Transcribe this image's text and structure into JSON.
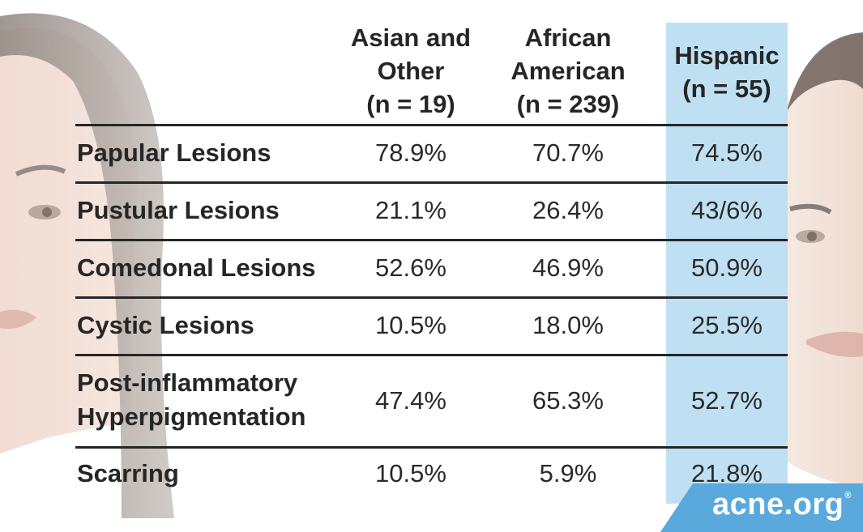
{
  "chart_data": {
    "type": "table",
    "columns": [
      {
        "name_lines": [
          "Asian and",
          "Other",
          "(n = 19)"
        ]
      },
      {
        "name_lines": [
          "African",
          "American",
          "(n = 239)"
        ]
      },
      {
        "name_lines": [
          "Hispanic",
          "(n = 55)"
        ]
      }
    ],
    "rows": [
      {
        "label_lines": [
          "Papular Lesions"
        ],
        "values": [
          "78.9%",
          "70.7%",
          "74.5%"
        ]
      },
      {
        "label_lines": [
          "Pustular Lesions"
        ],
        "values": [
          "21.1%",
          "26.4%",
          "43/6%"
        ]
      },
      {
        "label_lines": [
          "Comedonal Lesions"
        ],
        "values": [
          "52.6%",
          "46.9%",
          "50.9%"
        ]
      },
      {
        "label_lines": [
          "Cystic Lesions"
        ],
        "values": [
          "10.5%",
          "18.0%",
          "25.5%"
        ]
      },
      {
        "label_lines": [
          "Post-inflammatory",
          "Hyperpigmentation"
        ],
        "values": [
          "47.4%",
          "65.3%",
          "52.7%"
        ]
      },
      {
        "label_lines": [
          "Scarring"
        ],
        "values": [
          "10.5%",
          "5.9%",
          "21.8%"
        ]
      }
    ],
    "highlight_column": 2,
    "highlight_color": "#bfe0f3"
  },
  "brand": {
    "logo_text": "acne.org",
    "logo_mark": "®",
    "logo_color": "#5aa9dd"
  }
}
